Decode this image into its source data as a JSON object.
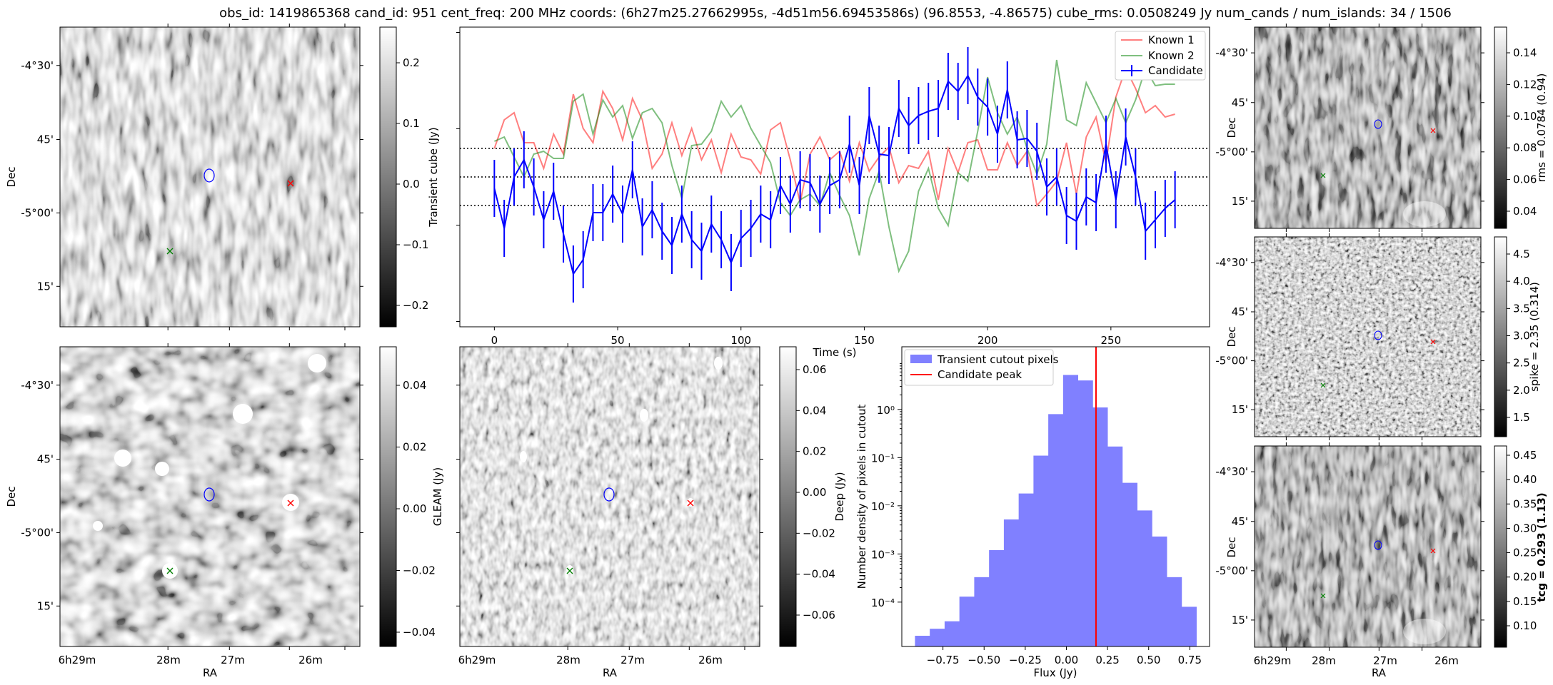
{
  "header": {
    "title": "obs_id: 1419865368 cand_id: 951 cent_freq: 200 MHz coords: (6h27m25.27662995s, -4d51m56.69453586s) (96.8553, -4.86575) cube_rms: 0.0508249 Jy num_cands / num_islands: 34 / 1506"
  },
  "colors": {
    "candidate": "#0000ff",
    "known1": "#ff0000",
    "known2": "#008000",
    "hist": "#8080ff"
  },
  "sky": {
    "ra_ticks": [
      "6h29m",
      "28m",
      "27m",
      "26m"
    ],
    "dec_ticks": [
      "-4°30'",
      "45'",
      "-5°00'",
      "15'"
    ],
    "xlabel": "RA",
    "ylabel": "Dec",
    "markers": [
      "candidate-contour",
      "known-1-cross",
      "known-2-cross"
    ]
  },
  "panels": {
    "transient": {
      "cbar_label": "Transient cube (Jy)",
      "cbar_ticks": [
        "0.2",
        "0.1",
        "0.0",
        "−0.1",
        "−0.2"
      ]
    },
    "gleam": {
      "cbar_label": "GLEAM (Jy)",
      "cbar_ticks": [
        "0.04",
        "0.02",
        "0.00",
        "−0.02",
        "−0.04"
      ]
    },
    "deep": {
      "cbar_label": "Deep (Jy)",
      "cbar_ticks": [
        "0.06",
        "0.04",
        "0.02",
        "0.00",
        "−0.02",
        "−0.04",
        "−0.06"
      ]
    },
    "rms": {
      "cbar_label": "rms = 0.0784 (0.94)",
      "cbar_ticks": [
        "0.14",
        "0.12",
        "0.10",
        "0.08",
        "0.06",
        "0.04"
      ]
    },
    "spike": {
      "cbar_label": "spike = 2.35 (0.314)",
      "cbar_ticks": [
        "4.5",
        "4.0",
        "3.5",
        "3.0",
        "2.5",
        "2.0",
        "1.5"
      ]
    },
    "tcg": {
      "cbar_label": "tcg = 0.293 (1.13)",
      "cbar_ticks": [
        "0.45",
        "0.40",
        "0.35",
        "0.30",
        "0.25",
        "0.20",
        "0.15",
        "0.10"
      ]
    }
  },
  "chart_data": [
    {
      "id": "lightcurve",
      "type": "line",
      "title": "",
      "xlabel": "Time (s)",
      "ylabel": "",
      "xlim": [
        -14,
        290
      ],
      "ylim": [
        -1.05,
        1.05
      ],
      "xticks": [
        "0",
        "50",
        "100",
        "150",
        "200",
        "250"
      ],
      "hlines": [
        0.2,
        0.0,
        -0.2
      ],
      "legend": {
        "position": "top-right",
        "labels": [
          "Known 1",
          "Known 2",
          "Candidate"
        ]
      },
      "series": [
        {
          "name": "Known 1",
          "color": "#ff0000",
          "alpha": 0.5,
          "x": [
            0,
            4,
            8,
            12,
            16,
            20,
            24,
            28,
            32,
            36,
            40,
            44,
            48,
            52,
            56,
            60,
            64,
            68,
            72,
            76,
            80,
            84,
            88,
            92,
            96,
            100,
            104,
            108,
            112,
            116,
            120,
            124,
            128,
            132,
            136,
            140,
            144,
            148,
            152,
            156,
            160,
            164,
            168,
            172,
            176,
            180,
            184,
            188,
            192,
            196,
            200,
            204,
            208,
            212,
            216,
            220,
            224,
            228,
            232,
            236,
            240,
            244,
            248,
            252,
            256,
            260,
            264,
            268,
            272,
            276
          ],
          "y": [
            0.2,
            0.4,
            0.45,
            0.24,
            0.24,
            0.06,
            0.3,
            0.16,
            0.58,
            0.34,
            0.24,
            0.6,
            0.48,
            0.26,
            0.55,
            0.4,
            0.06,
            0.16,
            0.38,
            0.15,
            0.34,
            0.12,
            0.26,
            0.03,
            0.3,
            0.14,
            0.12,
            0.02,
            0.33,
            0.38,
            0.12,
            -0.18,
            0.16,
            0.28,
            0.12,
            0.18,
            -0.03,
            0.24,
            0.04,
            0.14,
            0.21,
            -0.04,
            0.08,
            0.06,
            0.18,
            -0.16,
            0.2,
            0.03,
            0.24,
            0.26,
            0.05,
            0.05,
            0.24,
            0.08,
            0.18,
            -0.2,
            -0.12,
            -0.03,
            0.24,
            -0.12,
            0.28,
            0.42,
            0.1,
            0.56,
            0.76,
            0.62,
            0.45,
            0.5,
            0.42,
            0.44
          ]
        },
        {
          "name": "Known 2",
          "color": "#008000",
          "alpha": 0.5,
          "x": [
            0,
            4,
            8,
            12,
            16,
            20,
            24,
            28,
            32,
            36,
            40,
            44,
            48,
            52,
            56,
            60,
            64,
            68,
            72,
            76,
            80,
            84,
            88,
            92,
            96,
            100,
            104,
            108,
            112,
            116,
            120,
            124,
            128,
            132,
            136,
            140,
            144,
            148,
            152,
            156,
            160,
            164,
            168,
            172,
            176,
            180,
            184,
            188,
            192,
            196,
            200,
            204,
            208,
            212,
            216,
            220,
            224,
            228,
            232,
            236,
            240,
            244,
            248,
            252,
            256,
            260,
            264,
            268,
            272,
            276
          ],
          "y": [
            0.25,
            0.28,
            0.14,
            0.0,
            0.16,
            0.18,
            0.13,
            0.13,
            0.53,
            0.58,
            0.3,
            0.54,
            0.42,
            0.5,
            0.27,
            0.45,
            0.48,
            0.38,
            0.08,
            -0.15,
            0.22,
            0.23,
            0.32,
            0.53,
            0.42,
            0.5,
            0.34,
            0.22,
            0.1,
            -0.18,
            -0.27,
            -0.16,
            -0.12,
            -0.2,
            0.03,
            -0.13,
            -0.27,
            -0.55,
            -0.15,
            0.04,
            -0.35,
            -0.66,
            -0.52,
            -0.1,
            0.06,
            -0.22,
            -0.34,
            0.03,
            -0.03,
            0.32,
            0.7,
            0.45,
            0.3,
            0.42,
            0.2,
            0.02,
            0.23,
            0.82,
            0.4,
            0.36,
            0.66,
            0.52,
            0.38,
            0.55,
            0.38,
            0.54,
            0.76,
            0.64,
            0.65,
            0.65
          ]
        },
        {
          "name": "Candidate",
          "color": "#0000ff",
          "alpha": 1.0,
          "x": [
            0,
            4,
            8,
            12,
            16,
            20,
            24,
            28,
            32,
            36,
            40,
            44,
            48,
            52,
            56,
            60,
            64,
            68,
            72,
            76,
            80,
            84,
            88,
            92,
            96,
            100,
            104,
            108,
            112,
            116,
            120,
            124,
            128,
            132,
            136,
            140,
            144,
            148,
            152,
            156,
            160,
            164,
            168,
            172,
            176,
            180,
            184,
            188,
            192,
            196,
            200,
            204,
            208,
            212,
            216,
            220,
            224,
            228,
            232,
            236,
            240,
            244,
            248,
            252,
            256,
            260,
            264,
            268,
            272,
            276
          ],
          "y": [
            -0.08,
            -0.36,
            0.0,
            0.12,
            -0.07,
            -0.3,
            -0.1,
            -0.4,
            -0.68,
            -0.58,
            -0.25,
            -0.25,
            -0.12,
            -0.26,
            0.05,
            -0.35,
            -0.23,
            -0.38,
            -0.48,
            -0.26,
            -0.44,
            -0.52,
            -0.33,
            -0.44,
            -0.6,
            -0.43,
            -0.36,
            -0.26,
            -0.3,
            -0.06,
            -0.19,
            -0.02,
            -0.04,
            -0.19,
            -0.06,
            -0.02,
            0.23,
            -0.06,
            0.43,
            0.16,
            0.15,
            0.48,
            0.36,
            0.43,
            0.46,
            0.48,
            0.67,
            0.6,
            0.71,
            0.56,
            0.49,
            0.3,
            0.61,
            0.26,
            0.27,
            0.18,
            -0.07,
            0.0,
            -0.27,
            -0.31,
            -0.14,
            -0.18,
            0.23,
            -0.16,
            0.28,
            0.0,
            -0.38,
            -0.3,
            -0.22,
            -0.16
          ],
          "yerr": 0.2
        }
      ]
    },
    {
      "id": "histogram",
      "type": "bar",
      "xlabel": "Flux (Jy)",
      "ylabel": "Number density of pixels in cutout",
      "yscale": "log",
      "xlim": [
        -1.0,
        0.87
      ],
      "ylim": [
        1.2e-05,
        20
      ],
      "xticks": [
        "−0.75",
        "−0.50",
        "−0.25",
        "0.00",
        "0.25",
        "0.50",
        "0.75"
      ],
      "yticks": [
        "10⁰",
        "10⁻¹",
        "10⁻²",
        "10⁻³",
        "10⁻⁴"
      ],
      "legend": {
        "position": "top-left",
        "labels": [
          "Transient cutout pixels",
          "Candidate peak"
        ]
      },
      "bin_edges": [
        -0.92,
        -0.83,
        -0.74,
        -0.65,
        -0.56,
        -0.47,
        -0.38,
        -0.29,
        -0.2,
        -0.11,
        -0.02,
        0.07,
        0.16,
        0.25,
        0.34,
        0.43,
        0.52,
        0.61,
        0.7,
        0.79
      ],
      "values": [
        2e-05,
        2.8e-05,
        4e-05,
        0.00013,
        0.00033,
        0.0012,
        0.0052,
        0.018,
        0.11,
        0.8,
        5.2,
        4.0,
        1.1,
        0.17,
        0.03,
        0.008,
        0.0023,
        0.00033,
        8e-05
      ],
      "candidate_peak": 0.18
    }
  ]
}
